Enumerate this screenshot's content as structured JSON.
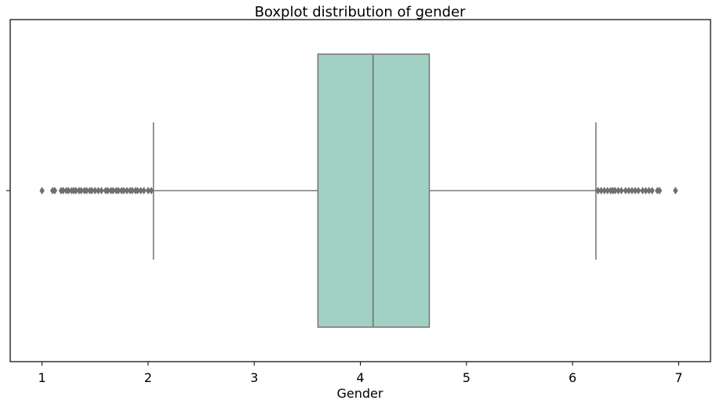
{
  "chart_data": {
    "type": "boxplot",
    "title": "Boxplot distribution of gender",
    "xlabel": "Gender",
    "ylabel": "",
    "xlim": [
      0.7,
      7.3
    ],
    "xticks": [
      "1",
      "2",
      "3",
      "4",
      "5",
      "6",
      "7"
    ],
    "grid": false,
    "legend": "none",
    "colors": {
      "box_fill": "#a2d0c4",
      "stroke": "#7a7a7a",
      "outlier": "#6f6f6f"
    },
    "box": {
      "whisker_low": 2.05,
      "q1": 3.6,
      "median": 4.12,
      "q3": 4.65,
      "whisker_high": 6.22
    },
    "outliers_low": [
      1.0,
      1.1,
      1.12,
      1.18,
      1.2,
      1.23,
      1.25,
      1.28,
      1.3,
      1.32,
      1.35,
      1.37,
      1.4,
      1.42,
      1.45,
      1.47,
      1.5,
      1.53,
      1.56,
      1.6,
      1.62,
      1.65,
      1.67,
      1.7,
      1.72,
      1.75,
      1.77,
      1.8,
      1.83,
      1.85,
      1.88,
      1.9,
      1.93,
      1.96,
      2.0,
      2.03
    ],
    "outliers_high": [
      6.24,
      6.27,
      6.3,
      6.33,
      6.36,
      6.38,
      6.4,
      6.43,
      6.46,
      6.5,
      6.53,
      6.56,
      6.59,
      6.62,
      6.66,
      6.69,
      6.72,
      6.75,
      6.8,
      6.82,
      6.97
    ]
  }
}
